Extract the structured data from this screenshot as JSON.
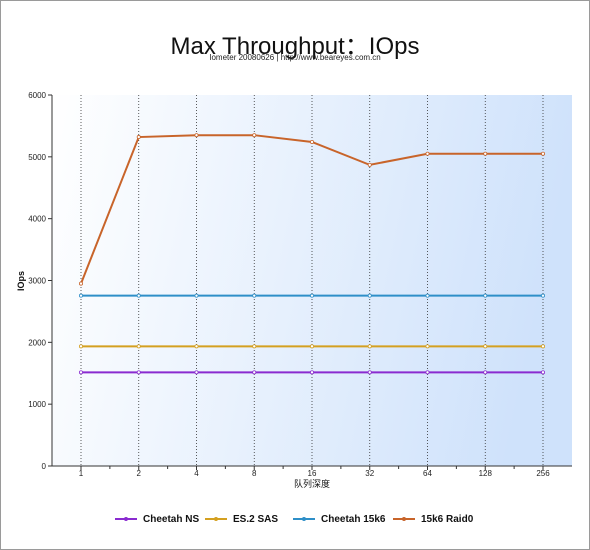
{
  "chart_data": {
    "type": "line",
    "title": "Max Throughput：IOps",
    "subtitle": "Iometer 20080626 | http://www.beareyes.com.cn",
    "xlabel": "队列深度",
    "ylabel": "IOps",
    "categories": [
      "1",
      "2",
      "4",
      "8",
      "16",
      "32",
      "64",
      "128",
      "256"
    ],
    "ylim": [
      0,
      6000
    ],
    "yticks": [
      0,
      1000,
      2000,
      3000,
      4000,
      5000,
      6000
    ],
    "grid": "vertical-dotted",
    "legend_position": "bottom",
    "series": [
      {
        "name": "Cheetah NS",
        "color": "#8a2bd0",
        "values": [
          1515,
          1515,
          1515,
          1515,
          1515,
          1515,
          1515,
          1515,
          1515
        ]
      },
      {
        "name": "ES.2 SAS",
        "color": "#d4a020",
        "values": [
          1935,
          1935,
          1935,
          1935,
          1935,
          1935,
          1935,
          1935,
          1935
        ]
      },
      {
        "name": "Cheetah 15k6",
        "color": "#2e8fc8",
        "values": [
          2755,
          2755,
          2755,
          2755,
          2755,
          2755,
          2755,
          2755,
          2755
        ]
      },
      {
        "name": "15k6 Raid0",
        "color": "#c8642a",
        "values": [
          2950,
          5320,
          5350,
          5350,
          5240,
          4870,
          5050,
          5050,
          5050
        ]
      }
    ]
  }
}
